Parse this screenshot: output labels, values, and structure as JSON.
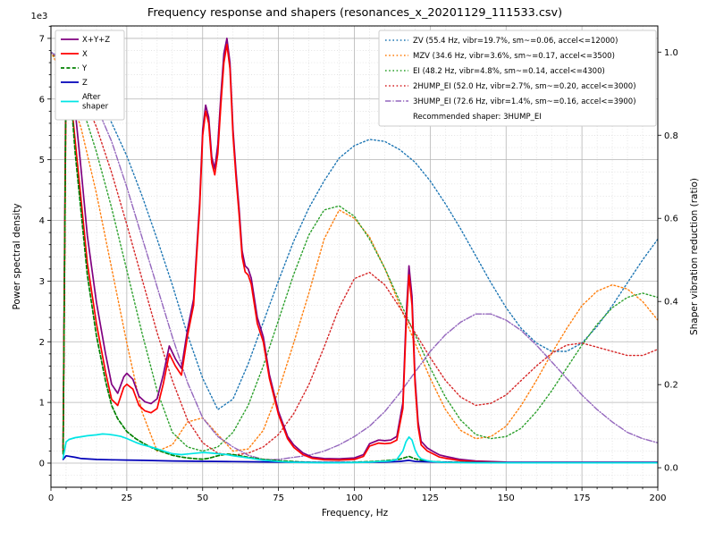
{
  "chart_data": {
    "type": "line",
    "title": "Frequency response and shapers (resonances_x_20201129_111533.csv)",
    "xlabel": "Frequency, Hz",
    "ylabel_left": "Power spectral density",
    "ylabel_right": "Shaper vibration reduction (ratio)",
    "left_offset_text": "1e3",
    "grid": {
      "major": true,
      "minor": true
    },
    "xlim": [
      0,
      200
    ],
    "ylim_left": [
      -398,
      7205
    ],
    "ylim_right": [
      -0.047,
      1.063
    ],
    "x_ticks": {
      "values": [
        0,
        25,
        50,
        75,
        100,
        125,
        150,
        175,
        200
      ],
      "labels": [
        "0",
        "25",
        "50",
        "75",
        "100",
        "125",
        "150",
        "175",
        "200"
      ]
    },
    "left_ticks": {
      "values": [
        0,
        1000,
        2000,
        3000,
        4000,
        5000,
        6000,
        7000
      ],
      "labels": [
        "0",
        "1",
        "2",
        "3",
        "4",
        "5",
        "6",
        "7"
      ]
    },
    "right_ticks": {
      "values": [
        0,
        0.2,
        0.4,
        0.6,
        0.8,
        1.0
      ],
      "labels": [
        "0.0",
        "0.2",
        "0.4",
        "0.6",
        "0.8",
        "1.0"
      ]
    },
    "x_minor_step": 5,
    "left_minor_step": 200,
    "legend_left_position": "upper-left",
    "legend_right_position": "upper-right",
    "recommended_text": "Recommended shaper: 3HUMP_EI",
    "recommended_shaper": "3HUMP_EI",
    "psd_series": [
      {
        "id": "x-plus-y-plus-z",
        "label_lines": [
          "X+Y+Z"
        ],
        "color": "#800080",
        "style": "solid",
        "axis": "left",
        "x": [
          4,
          5,
          6,
          8,
          10,
          12,
          15,
          18,
          20,
          22,
          24,
          25,
          27,
          29,
          31,
          33,
          35,
          37,
          39,
          41,
          43,
          45,
          47,
          49,
          50,
          51,
          52,
          53,
          54,
          55,
          56,
          57,
          58,
          59,
          60,
          61,
          62,
          63,
          64,
          65,
          66,
          68,
          70,
          72,
          75,
          78,
          80,
          83,
          86,
          90,
          95,
          100,
          103,
          105,
          108,
          110,
          112,
          114,
          116,
          117,
          118,
          119,
          120,
          121,
          122,
          124,
          126,
          128,
          130,
          135,
          140,
          150,
          160,
          180,
          200
        ],
        "y": [
          250,
          7000,
          6800,
          5800,
          4800,
          3750,
          2650,
          1800,
          1300,
          1150,
          1420,
          1480,
          1380,
          1100,
          1010,
          980,
          1060,
          1450,
          1930,
          1720,
          1560,
          2200,
          2700,
          4300,
          5500,
          5900,
          5700,
          5050,
          4850,
          5250,
          6050,
          6750,
          7000,
          6600,
          5500,
          4800,
          4200,
          3500,
          3250,
          3200,
          3050,
          2400,
          2080,
          1460,
          850,
          440,
          300,
          170,
          100,
          75,
          70,
          85,
          140,
          320,
          380,
          370,
          380,
          440,
          1000,
          2350,
          3250,
          2750,
          1400,
          680,
          360,
          250,
          190,
          135,
          110,
          60,
          35,
          18,
          15,
          15,
          15
        ]
      },
      {
        "id": "x",
        "label_lines": [
          "X"
        ],
        "color": "#ff0000",
        "style": "solid",
        "axis": "left",
        "x": [
          4,
          5,
          6,
          8,
          10,
          12,
          15,
          18,
          20,
          22,
          24,
          25,
          27,
          29,
          31,
          33,
          35,
          37,
          39,
          41,
          43,
          45,
          47,
          49,
          50,
          51,
          52,
          53,
          54,
          55,
          56,
          57,
          58,
          59,
          60,
          61,
          62,
          63,
          64,
          65,
          66,
          68,
          70,
          72,
          75,
          78,
          80,
          83,
          86,
          90,
          95,
          100,
          103,
          105,
          108,
          110,
          112,
          114,
          116,
          117,
          118,
          119,
          120,
          121,
          122,
          124,
          126,
          128,
          130,
          135,
          140,
          150,
          160,
          180,
          200
        ],
        "y": [
          200,
          6500,
          6300,
          5300,
          4300,
          3300,
          2300,
          1500,
          1050,
          950,
          1250,
          1300,
          1220,
          950,
          860,
          830,
          900,
          1300,
          1800,
          1600,
          1450,
          2100,
          2600,
          4200,
          5400,
          5800,
          5600,
          4950,
          4750,
          5100,
          5900,
          6600,
          6900,
          6500,
          5400,
          4700,
          4100,
          3400,
          3150,
          3100,
          2950,
          2300,
          2000,
          1400,
          800,
          400,
          260,
          140,
          80,
          55,
          50,
          60,
          110,
          280,
          330,
          320,
          330,
          380,
          900,
          2200,
          3100,
          2600,
          1300,
          600,
          300,
          200,
          150,
          100,
          80,
          40,
          25,
          12,
          10,
          10,
          10
        ]
      },
      {
        "id": "y",
        "label_lines": [
          "Y"
        ],
        "color": "#008000",
        "style": "dashed",
        "axis": "left",
        "x": [
          4,
          5,
          6,
          8,
          10,
          12,
          15,
          18,
          20,
          22,
          25,
          28,
          30,
          33,
          35,
          38,
          40,
          43,
          45,
          48,
          50,
          52,
          55,
          58,
          60,
          63,
          65,
          70,
          75,
          80,
          85,
          90,
          95,
          100,
          105,
          110,
          113,
          115,
          117,
          118,
          120,
          123,
          126,
          130,
          140,
          150,
          160,
          180,
          200
        ],
        "y": [
          150,
          6600,
          6400,
          5100,
          4100,
          3100,
          2100,
          1350,
          950,
          730,
          520,
          400,
          340,
          260,
          215,
          165,
          130,
          100,
          85,
          70,
          65,
          80,
          120,
          150,
          140,
          115,
          95,
          60,
          40,
          25,
          15,
          12,
          12,
          15,
          25,
          40,
          55,
          65,
          95,
          110,
          70,
          40,
          25,
          18,
          10,
          8,
          6,
          5,
          5
        ]
      },
      {
        "id": "z",
        "label_lines": [
          "Z"
        ],
        "color": "#0000b8",
        "style": "solid",
        "axis": "left",
        "x": [
          4,
          5,
          8,
          10,
          15,
          20,
          25,
          30,
          40,
          50,
          60,
          70,
          80,
          90,
          100,
          110,
          115,
          118,
          120,
          130,
          150,
          200
        ],
        "y": [
          60,
          120,
          95,
          75,
          60,
          55,
          50,
          45,
          35,
          30,
          25,
          20,
          15,
          12,
          12,
          18,
          28,
          45,
          28,
          15,
          10,
          8
        ]
      },
      {
        "id": "after-shaper",
        "label_lines": [
          "After",
          "shaper"
        ],
        "color": "#00e5e5",
        "style": "solid",
        "axis": "left",
        "x": [
          4,
          5,
          6,
          8,
          10,
          12,
          15,
          17,
          19,
          21,
          23,
          25,
          28,
          30,
          33,
          35,
          38,
          40,
          43,
          45,
          48,
          50,
          52,
          54,
          56,
          58,
          60,
          63,
          65,
          68,
          70,
          75,
          80,
          85,
          90,
          95,
          100,
          105,
          108,
          110,
          112,
          114,
          116,
          117,
          118,
          119,
          120,
          121,
          122,
          124,
          126,
          128,
          130,
          135,
          140,
          150,
          160,
          180,
          200
        ],
        "y": [
          80,
          350,
          390,
          420,
          435,
          450,
          465,
          480,
          475,
          460,
          440,
          405,
          340,
          305,
          265,
          235,
          185,
          155,
          140,
          150,
          165,
          175,
          170,
          160,
          150,
          140,
          120,
          100,
          85,
          62,
          48,
          26,
          13,
          8,
          6,
          6,
          8,
          16,
          26,
          30,
          36,
          60,
          200,
          350,
          430,
          380,
          220,
          120,
          70,
          40,
          25,
          18,
          12,
          8,
          6,
          5,
          5,
          5,
          5
        ]
      }
    ],
    "shaper_x": [
      0,
      5,
      10,
      15,
      20,
      25,
      30,
      35,
      40,
      45,
      50,
      55,
      60,
      65,
      70,
      75,
      80,
      85,
      90,
      95,
      100,
      105,
      110,
      115,
      120,
      125,
      130,
      135,
      140,
      145,
      150,
      155,
      160,
      165,
      170,
      175,
      180,
      185,
      190,
      195,
      200
    ],
    "shaper_series": [
      {
        "id": "zv",
        "label": "ZV (55.4 Hz, vibr=19.7%, sm~=0.06, accel<=12000)",
        "freq_hz": 55.4,
        "vibr_pct": 19.7,
        "smoothing": 0.06,
        "max_accel": 12000,
        "color": "#1f77b4",
        "style": "dotted",
        "axis": "right",
        "y": [
          1.0,
          0.98,
          0.945,
          0.895,
          0.83,
          0.75,
          0.655,
          0.55,
          0.44,
          0.32,
          0.215,
          0.14,
          0.165,
          0.25,
          0.35,
          0.45,
          0.545,
          0.625,
          0.69,
          0.745,
          0.775,
          0.79,
          0.785,
          0.765,
          0.735,
          0.69,
          0.635,
          0.575,
          0.51,
          0.445,
          0.385,
          0.335,
          0.3,
          0.28,
          0.28,
          0.3,
          0.34,
          0.39,
          0.445,
          0.5,
          0.55
        ]
      },
      {
        "id": "mzv",
        "label": "MZV (34.6 Hz, vibr=3.6%, sm~=0.17, accel<=3500)",
        "freq_hz": 34.6,
        "vibr_pct": 3.6,
        "smoothing": 0.17,
        "max_accel": 3500,
        "color": "#ff7f0e",
        "style": "dotted",
        "axis": "right",
        "y": [
          1.0,
          0.93,
          0.815,
          0.66,
          0.48,
          0.3,
          0.135,
          0.04,
          0.055,
          0.11,
          0.12,
          0.08,
          0.04,
          0.045,
          0.09,
          0.185,
          0.3,
          0.42,
          0.55,
          0.62,
          0.6,
          0.555,
          0.48,
          0.39,
          0.3,
          0.215,
          0.14,
          0.09,
          0.07,
          0.075,
          0.1,
          0.15,
          0.21,
          0.275,
          0.335,
          0.39,
          0.425,
          0.44,
          0.43,
          0.4,
          0.355
        ]
      },
      {
        "id": "ei",
        "label": "EI (48.2 Hz, vibr=4.8%, sm~=0.14, accel<=4300)",
        "freq_hz": 48.2,
        "vibr_pct": 4.8,
        "smoothing": 0.14,
        "max_accel": 4300,
        "color": "#2ca02c",
        "style": "dotted",
        "axis": "right",
        "y": [
          1.0,
          0.955,
          0.875,
          0.76,
          0.625,
          0.475,
          0.325,
          0.185,
          0.085,
          0.05,
          0.04,
          0.05,
          0.085,
          0.15,
          0.245,
          0.355,
          0.465,
          0.56,
          0.62,
          0.63,
          0.605,
          0.55,
          0.48,
          0.4,
          0.32,
          0.24,
          0.17,
          0.115,
          0.08,
          0.07,
          0.075,
          0.095,
          0.135,
          0.185,
          0.24,
          0.295,
          0.345,
          0.385,
          0.41,
          0.42,
          0.41
        ]
      },
      {
        "id": "2hump-ei",
        "label": "2HUMP_EI (52.0 Hz, vibr=2.7%, sm~=0.20, accel<=3000)",
        "freq_hz": 52.0,
        "vibr_pct": 2.7,
        "smoothing": 0.2,
        "max_accel": 3000,
        "color": "#d62728",
        "style": "dotted",
        "axis": "right",
        "y": [
          1.0,
          0.965,
          0.905,
          0.82,
          0.71,
          0.585,
          0.455,
          0.325,
          0.21,
          0.115,
          0.06,
          0.035,
          0.03,
          0.035,
          0.05,
          0.08,
          0.13,
          0.2,
          0.29,
          0.385,
          0.455,
          0.47,
          0.44,
          0.385,
          0.325,
          0.265,
          0.21,
          0.17,
          0.15,
          0.155,
          0.175,
          0.21,
          0.245,
          0.275,
          0.295,
          0.3,
          0.29,
          0.28,
          0.27,
          0.27,
          0.285
        ]
      },
      {
        "id": "3hump-ei",
        "label": "3HUMP_EI (72.6 Hz, vibr=1.4%, sm~=0.16, accel<=3900)",
        "freq_hz": 72.6,
        "vibr_pct": 1.4,
        "smoothing": 0.16,
        "max_accel": 3900,
        "color": "#9467bd",
        "style": "dashdot",
        "axis": "right",
        "y": [
          1.0,
          0.975,
          0.935,
          0.87,
          0.785,
          0.675,
          0.555,
          0.435,
          0.315,
          0.205,
          0.12,
          0.075,
          0.05,
          0.03,
          0.02,
          0.02,
          0.025,
          0.03,
          0.04,
          0.055,
          0.075,
          0.1,
          0.135,
          0.18,
          0.23,
          0.28,
          0.32,
          0.35,
          0.37,
          0.37,
          0.355,
          0.33,
          0.295,
          0.255,
          0.215,
          0.175,
          0.14,
          0.11,
          0.085,
          0.07,
          0.06
        ]
      }
    ]
  }
}
